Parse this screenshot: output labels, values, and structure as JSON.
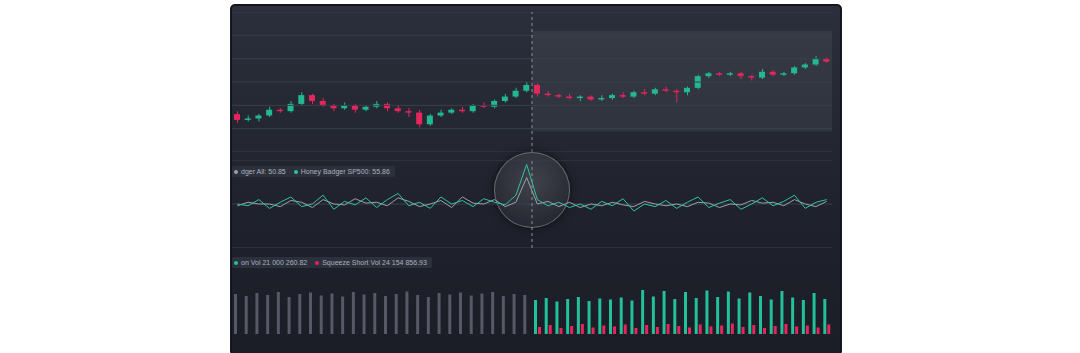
{
  "chart_data": [
    {
      "type": "candlestick",
      "x": [
        1,
        2,
        3,
        4,
        5,
        6,
        7,
        8,
        9,
        10,
        11,
        12,
        13,
        14,
        15,
        16,
        17,
        18,
        19,
        20,
        21,
        22,
        23,
        24,
        25,
        26,
        27,
        28,
        29,
        30,
        31,
        32,
        33,
        34,
        35,
        36,
        37,
        38,
        39,
        40,
        41,
        42,
        43,
        44,
        45,
        46,
        47,
        48,
        49,
        50,
        51,
        52,
        53,
        54,
        55,
        56
      ],
      "open": [
        24,
        20,
        21,
        23,
        27,
        26,
        31,
        37,
        33,
        30,
        28,
        30,
        27,
        29,
        31,
        28,
        26,
        25,
        17,
        23,
        25,
        27,
        26,
        30,
        29,
        33,
        36,
        40,
        44,
        38,
        37,
        36,
        35,
        36,
        34,
        35,
        37,
        36,
        39,
        38,
        41,
        40,
        39,
        42,
        50,
        52,
        51,
        52,
        50,
        49,
        53,
        51,
        52,
        56,
        58,
        62
      ],
      "high": [
        26,
        23,
        24,
        29,
        28,
        33,
        39,
        38,
        35,
        31,
        32,
        31,
        30,
        33,
        32,
        30,
        28,
        27,
        24,
        27,
        28,
        29,
        31,
        32,
        34,
        38,
        42,
        46,
        45,
        40,
        38,
        38,
        37,
        37,
        37,
        38,
        39,
        40,
        41,
        42,
        43,
        41,
        43,
        51,
        53,
        53,
        53,
        53,
        51,
        55,
        54,
        53,
        57,
        59,
        64,
        63
      ],
      "low": [
        18,
        19,
        19,
        22,
        25,
        25,
        30,
        31,
        29,
        26,
        27,
        25,
        26,
        28,
        26,
        25,
        22,
        15,
        16,
        22,
        24,
        25,
        25,
        28,
        28,
        32,
        35,
        39,
        36,
        36,
        35,
        34,
        33,
        33,
        33,
        34,
        35,
        35,
        37,
        37,
        39,
        32,
        37,
        41,
        49,
        50,
        50,
        48,
        47,
        48,
        50,
        50,
        51,
        55,
        57,
        59
      ],
      "close": [
        20,
        21,
        23,
        27,
        26,
        31,
        37,
        33,
        30,
        28,
        30,
        27,
        29,
        31,
        28,
        26,
        25,
        17,
        23,
        25,
        27,
        26,
        30,
        29,
        33,
        36,
        40,
        44,
        38,
        37,
        36,
        35,
        36,
        34,
        35,
        37,
        36,
        39,
        38,
        41,
        40,
        39,
        42,
        50,
        52,
        51,
        52,
        50,
        49,
        53,
        51,
        52,
        56,
        58,
        62,
        60
      ],
      "colors": [
        "#e5265c",
        "#22b892",
        "#22b892",
        "#22b892",
        "#e5265c",
        "#22b892",
        "#22b892",
        "#e5265c",
        "#e5265c",
        "#e5265c",
        "#22b892",
        "#e5265c",
        "#22b892",
        "#22b892",
        "#e5265c",
        "#e5265c",
        "#e5265c",
        "#e5265c",
        "#22b892",
        "#22b892",
        "#22b892",
        "#e5265c",
        "#22b892",
        "#e5265c",
        "#22b892",
        "#22b892",
        "#22b892",
        "#22b892",
        "#e5265c",
        "#e5265c",
        "#e5265c",
        "#e5265c",
        "#22b892",
        "#e5265c",
        "#22b892",
        "#22b892",
        "#e5265c",
        "#22b892",
        "#e5265c",
        "#22b892",
        "#e5265c",
        "#e5265c",
        "#22b892",
        "#22b892",
        "#22b892",
        "#e5265c",
        "#22b892",
        "#e5265c",
        "#e5265c",
        "#22b892",
        "#e5265c",
        "#22b892",
        "#22b892",
        "#22b892",
        "#22b892",
        "#e5265c"
      ],
      "xlim": [
        0.5,
        56.5
      ],
      "ylim": [
        -2,
        94
      ],
      "yticks": [
        -2,
        14,
        30,
        46,
        62,
        78,
        94
      ],
      "grid": true,
      "tick_labels": false,
      "divider_x": 28.5,
      "forecast_region": {
        "x": [
          28.5,
          56.5
        ],
        "y": [
          12,
          81
        ]
      }
    },
    {
      "type": "line",
      "x": [
        1,
        2,
        3,
        4,
        5,
        6,
        7,
        8,
        9,
        10,
        11,
        12,
        13,
        14,
        15,
        16,
        17,
        18,
        19,
        20,
        21,
        22,
        23,
        24,
        25,
        26,
        27,
        28,
        29,
        30,
        31,
        32,
        33,
        34,
        35,
        36,
        37,
        38,
        39,
        40,
        41,
        42,
        43,
        44,
        45,
        46,
        47,
        48,
        49,
        50,
        51,
        52,
        53,
        54,
        55,
        56
      ],
      "series": [
        {
          "name": "dger All: 50.85",
          "color": "#9aa1ab",
          "values": [
            48,
            52,
            50,
            50,
            47,
            54,
            52,
            46,
            55,
            50,
            49,
            56,
            51,
            52,
            48,
            57,
            53,
            47,
            50,
            54,
            46,
            58,
            51,
            50,
            55,
            47,
            52,
            80,
            50,
            53,
            47,
            52,
            46,
            50,
            48,
            52,
            49,
            47,
            53,
            50,
            48,
            50,
            47,
            52,
            51,
            46,
            50,
            49,
            54,
            51,
            52,
            48,
            55,
            50,
            47,
            53
          ]
        },
        {
          "name": "Honey Badger SP500: 55.86",
          "color": "#2ec4a0",
          "values": [
            50,
            48,
            55,
            45,
            52,
            58,
            47,
            50,
            60,
            44,
            53,
            49,
            57,
            46,
            55,
            62,
            48,
            52,
            45,
            58,
            50,
            54,
            47,
            56,
            52,
            49,
            60,
            95,
            55,
            48,
            52,
            46,
            50,
            44,
            53,
            48,
            56,
            42,
            50,
            47,
            54,
            45,
            52,
            58,
            46,
            51,
            55,
            44,
            50,
            57,
            48,
            53,
            60,
            45,
            52,
            55
          ]
        }
      ],
      "xlim": [
        0.5,
        56.5
      ],
      "ylim": [
        0,
        100
      ],
      "yticks": [
        0,
        50,
        100
      ],
      "grid": true,
      "tick_labels": false,
      "divider_x": 28.5
    },
    {
      "type": "bar",
      "x": [
        1,
        2,
        3,
        4,
        5,
        6,
        7,
        8,
        9,
        10,
        11,
        12,
        13,
        14,
        15,
        16,
        17,
        18,
        19,
        20,
        21,
        22,
        23,
        24,
        25,
        26,
        27,
        28,
        29,
        30,
        31,
        32,
        33,
        34,
        35,
        36,
        37,
        38,
        39,
        40,
        41,
        42,
        43,
        44,
        45,
        46,
        47,
        48,
        49,
        50,
        51,
        52,
        53,
        54,
        55,
        56
      ],
      "series": [
        {
          "name": "on Vol 21 000 260.82",
          "color": "#22c19a",
          "colors": [
            "#555a66",
            "#555a66",
            "#555a66",
            "#555a66",
            "#555a66",
            "#555a66",
            "#555a66",
            "#555a66",
            "#555a66",
            "#555a66",
            "#555a66",
            "#555a66",
            "#555a66",
            "#555a66",
            "#555a66",
            "#555a66",
            "#555a66",
            "#555a66",
            "#555a66",
            "#555a66",
            "#555a66",
            "#555a66",
            "#555a66",
            "#555a66",
            "#555a66",
            "#555a66",
            "#555a66",
            "#555a66",
            "#22c19a",
            "#22c19a",
            "#22c19a",
            "#22c19a",
            "#22c19a",
            "#22c19a",
            "#22c19a",
            "#22c19a",
            "#22c19a",
            "#22c19a",
            "#22c19a",
            "#22c19a",
            "#22c19a",
            "#22c19a",
            "#22c19a",
            "#22c19a",
            "#22c19a",
            "#22c19a",
            "#22c19a",
            "#22c19a",
            "#22c19a",
            "#22c19a",
            "#22c19a",
            "#22c19a",
            "#22c19a",
            "#22c19a",
            "#22c19a",
            "#22c19a"
          ],
          "values": [
            80,
            76,
            82,
            78,
            84,
            74,
            80,
            83,
            77,
            81,
            75,
            84,
            79,
            82,
            76,
            80,
            85,
            78,
            74,
            82,
            79,
            83,
            77,
            81,
            84,
            76,
            80,
            78,
            68,
            72,
            65,
            70,
            74,
            66,
            71,
            69,
            73,
            67,
            88,
            75,
            86,
            70,
            84,
            72,
            87,
            74,
            85,
            71,
            83,
            76,
            69,
            86,
            73,
            68,
            82,
            70
          ]
        },
        {
          "name": "Squeeze Short Vol 24 154 856.93",
          "color": "#e5265c",
          "values": [
            null,
            null,
            null,
            null,
            null,
            null,
            null,
            null,
            null,
            null,
            null,
            null,
            null,
            null,
            null,
            null,
            null,
            null,
            null,
            null,
            null,
            null,
            null,
            null,
            null,
            null,
            null,
            null,
            14,
            18,
            12,
            16,
            20,
            13,
            17,
            15,
            19,
            12,
            18,
            14,
            20,
            16,
            13,
            19,
            15,
            17,
            21,
            14,
            18,
            12,
            16,
            20,
            15,
            17,
            13,
            19
          ]
        }
      ],
      "xlim": [
        0.5,
        56.5
      ],
      "ylim": [
        0,
        100
      ],
      "yticks": [
        0,
        100
      ],
      "grid": false,
      "tick_labels": false
    }
  ]
}
